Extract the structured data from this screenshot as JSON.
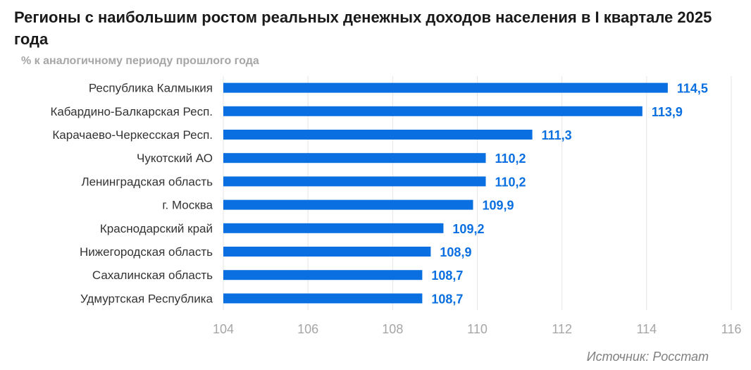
{
  "title": "Регионы с наибольшим ростом реальных денежных доходов населения в I квартале 2025 года",
  "subtitle": "% к аналогичному периоду прошлого года",
  "source": "Источник: Росстат",
  "colors": {
    "bar": "#0a6fe0",
    "value_label": "#0a6fe0",
    "grid": "#e6e6e6",
    "tick": "#a6a6a6",
    "category": "#333333"
  },
  "chart_data": {
    "type": "bar",
    "orientation": "horizontal",
    "categories": [
      "Республика Калмыкия",
      "Кабардино-Балкарская Респ.",
      "Карачаево-Черкесская Респ.",
      "Чукотский АО",
      "Ленинградская область",
      "г. Москва",
      "Краснодарский край",
      "Нижегородская область",
      "Сахалинская область",
      "Удмуртская Республика"
    ],
    "values": [
      114.5,
      113.9,
      111.3,
      110.2,
      110.2,
      109.9,
      109.2,
      108.9,
      108.7,
      108.7
    ],
    "value_labels": [
      "114,5",
      "113,9",
      "111,3",
      "110,2",
      "110,2",
      "109,9",
      "109,2",
      "108,9",
      "108,7",
      "108,7"
    ],
    "x_ticks": [
      "104",
      "106",
      "108",
      "110",
      "112",
      "114",
      "116"
    ],
    "xlim": [
      104,
      116
    ],
    "grid": true,
    "legend": "none"
  }
}
